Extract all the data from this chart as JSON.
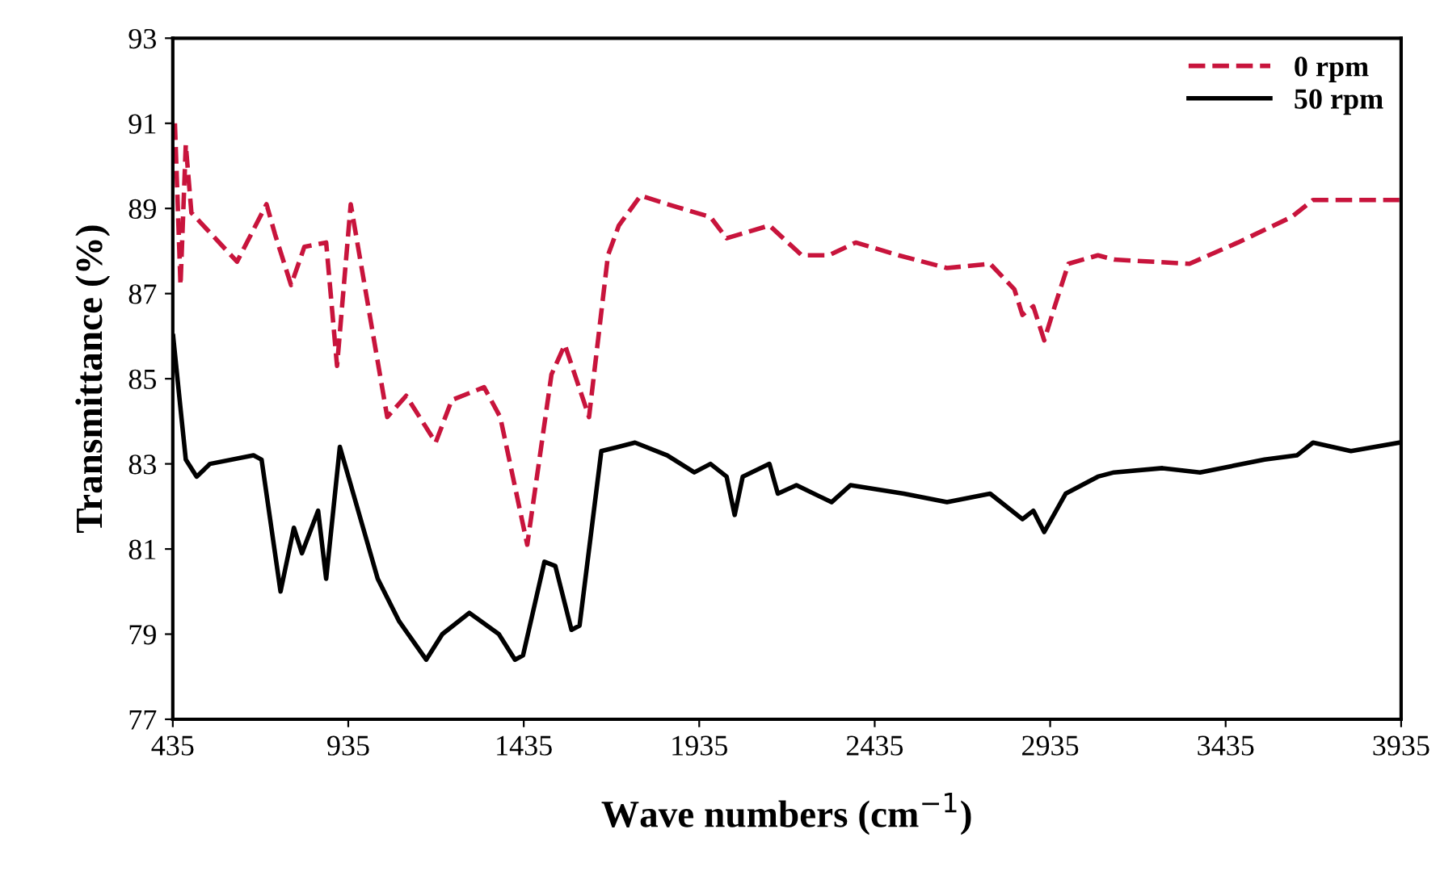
{
  "chart_data": {
    "type": "line",
    "xlabel": "Wave numbers (cm$^{−1}$)",
    "ylabel": "Transmittance (%)",
    "xlim": [
      435,
      3935
    ],
    "ylim": [
      77,
      93
    ],
    "xticks": [
      435,
      935,
      1435,
      1935,
      2435,
      2935,
      3435,
      3935
    ],
    "yticks": [
      77,
      79,
      81,
      83,
      85,
      87,
      89,
      91,
      93
    ],
    "grid": false,
    "legend": "top right",
    "series": [
      {
        "name": "0 rpm",
        "color": "#c8143c",
        "line_style": "dashed",
        "x": [
          441,
          457,
          472,
          488,
          618,
          671,
          702,
          726,
          772,
          810,
          872,
          903,
          942,
          1046,
          1100,
          1184,
          1230,
          1322,
          1368,
          1445,
          1514,
          1552,
          1621,
          1675,
          1706,
          1768,
          1844,
          1967,
          2013,
          2135,
          2227,
          2304,
          2381,
          2503,
          2641,
          2764,
          2833,
          2856,
          2887,
          2918,
          2948,
          2987,
          3071,
          3117,
          3332,
          3470,
          3623,
          3684,
          3792,
          3930
        ],
        "values": [
          91.0,
          87.2,
          90.5,
          88.9,
          87.75,
          88.6,
          89.1,
          88.4,
          87.2,
          88.1,
          88.2,
          85.3,
          89.1,
          84.1,
          84.6,
          83.5,
          84.5,
          84.8,
          84.1,
          81.1,
          85.1,
          85.8,
          84.1,
          87.9,
          88.6,
          89.3,
          89.1,
          88.8,
          88.3,
          88.6,
          87.9,
          87.9,
          88.2,
          87.9,
          87.6,
          87.7,
          87.1,
          86.5,
          86.7,
          85.9,
          86.7,
          87.7,
          87.9,
          87.8,
          87.7,
          88.2,
          88.8,
          89.2,
          89.2,
          89.2
        ]
      },
      {
        "name": "50 rpm",
        "color": "#000000",
        "line_style": "solid",
        "x": [
          436,
          457,
          472,
          503,
          541,
          665,
          688,
          742,
          780,
          803,
          849,
          872,
          911,
          1019,
          1080,
          1157,
          1203,
          1280,
          1364,
          1410,
          1433,
          1494,
          1525,
          1571,
          1594,
          1656,
          1752,
          1844,
          1921,
          1967,
          2013,
          2036,
          2059,
          2135,
          2159,
          2212,
          2312,
          2366,
          2518,
          2641,
          2764,
          2856,
          2887,
          2918,
          2979,
          3071,
          3117,
          3255,
          3362,
          3546,
          3638,
          3684,
          3792,
          3930
        ],
        "values": [
          86.0,
          84.3,
          83.1,
          82.7,
          83.0,
          83.2,
          83.1,
          80.0,
          81.5,
          80.9,
          81.9,
          80.3,
          83.4,
          80.3,
          79.3,
          78.4,
          79.0,
          79.5,
          79.0,
          78.4,
          78.5,
          80.7,
          80.6,
          79.1,
          79.2,
          83.3,
          83.5,
          83.2,
          82.8,
          83.0,
          82.7,
          81.8,
          82.7,
          83.0,
          82.3,
          82.5,
          82.1,
          82.5,
          82.3,
          82.1,
          82.3,
          81.7,
          81.9,
          81.4,
          82.3,
          82.7,
          82.8,
          82.9,
          82.8,
          83.1,
          83.2,
          83.5,
          83.3,
          83.5
        ]
      }
    ]
  }
}
